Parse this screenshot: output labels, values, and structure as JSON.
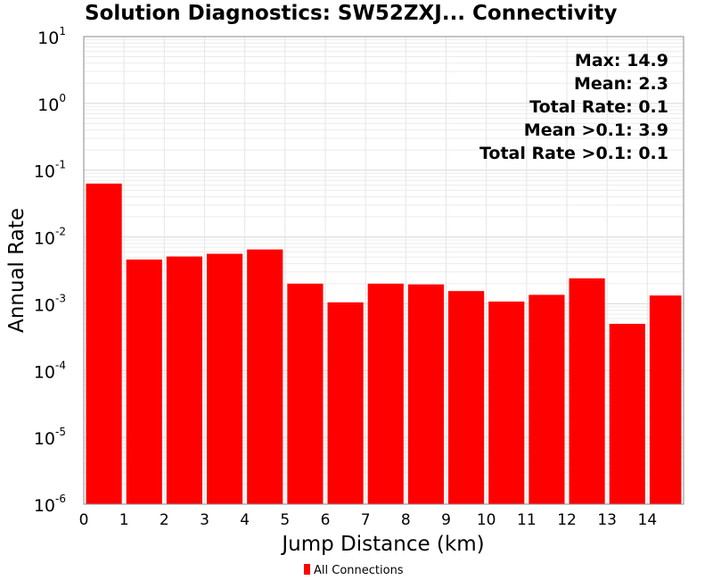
{
  "chart_data": {
    "type": "bar",
    "title": "Solution Diagnostics: SW52ZXJ... Connectivity",
    "xlabel": "Jump Distance (km)",
    "ylabel": "Annual Rate",
    "yscale": "log",
    "ylim": [
      1e-06,
      10
    ],
    "xlim": [
      0,
      14.9
    ],
    "x_ticks": [
      "0",
      "1",
      "2",
      "3",
      "4",
      "5",
      "6",
      "7",
      "8",
      "9",
      "10",
      "11",
      "12",
      "13",
      "14"
    ],
    "y_ticks": [
      {
        "base": "10",
        "exp": "-6"
      },
      {
        "base": "10",
        "exp": "-5"
      },
      {
        "base": "10",
        "exp": "-4"
      },
      {
        "base": "10",
        "exp": "-3"
      },
      {
        "base": "10",
        "exp": "-2"
      },
      {
        "base": "10",
        "exp": "-1"
      },
      {
        "base": "10",
        "exp": "0"
      },
      {
        "base": "10",
        "exp": "1"
      }
    ],
    "bin_edges": [
      0,
      1,
      2,
      3,
      4,
      5,
      6,
      7,
      8,
      9,
      10,
      11,
      12,
      13,
      14,
      14.9
    ],
    "series": [
      {
        "name": "All Connections",
        "color": "#ff0000",
        "values": [
          0.063,
          0.0046,
          0.0051,
          0.0056,
          0.0065,
          0.002,
          0.00105,
          0.002,
          0.00195,
          0.00155,
          0.00108,
          0.00136,
          0.0024,
          0.0005,
          0.00133
        ]
      }
    ],
    "annotations": [
      "Max: 14.9",
      "Mean: 2.3",
      "Total Rate: 0.1",
      "Mean >0.1: 3.9",
      "Total Rate >0.1: 0.1"
    ],
    "legend_position": "bottom-center",
    "grid": true
  }
}
